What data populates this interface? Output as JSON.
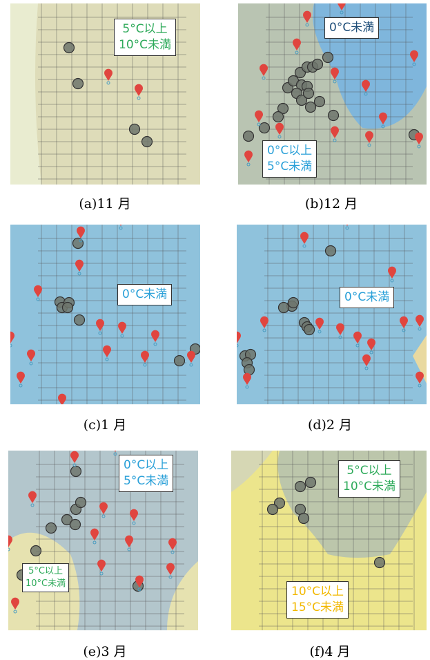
{
  "panels": [
    {
      "caption": "(a)11 月",
      "labels": [
        {
          "lines": [
            "5°C以上",
            "10°C未満"
          ],
          "color": "#2eaa5a"
        }
      ]
    },
    {
      "caption": "(b)12 月",
      "labels": [
        {
          "lines": [
            "0°C未満"
          ],
          "color": "#1f4e79"
        },
        {
          "lines": [
            "0°C以上",
            "5°C未満"
          ],
          "color": "#2aa0d8"
        }
      ]
    },
    {
      "caption": "(c)1 月",
      "labels": [
        {
          "lines": [
            "0°C未満"
          ],
          "color": "#2aa0d8"
        }
      ]
    },
    {
      "caption": "(d)2 月",
      "labels": [
        {
          "lines": [
            "0°C未満"
          ],
          "color": "#2aa0d8"
        }
      ]
    },
    {
      "caption": "(e)3 月",
      "labels": [
        {
          "lines": [
            "0°C以上",
            "5°C未満"
          ],
          "color": "#2aa0d8"
        },
        {
          "lines": [
            "5°C以上",
            "10°C未満"
          ],
          "color": "#2eaa5a"
        }
      ]
    },
    {
      "caption": "(f)4 月",
      "labels": [
        {
          "lines": [
            "5°C以上",
            "10°C未満"
          ],
          "color": "#2eaa5a"
        },
        {
          "lines": [
            "10°C以上",
            "15°C未満"
          ],
          "color": "#f2b800"
        }
      ]
    }
  ]
}
